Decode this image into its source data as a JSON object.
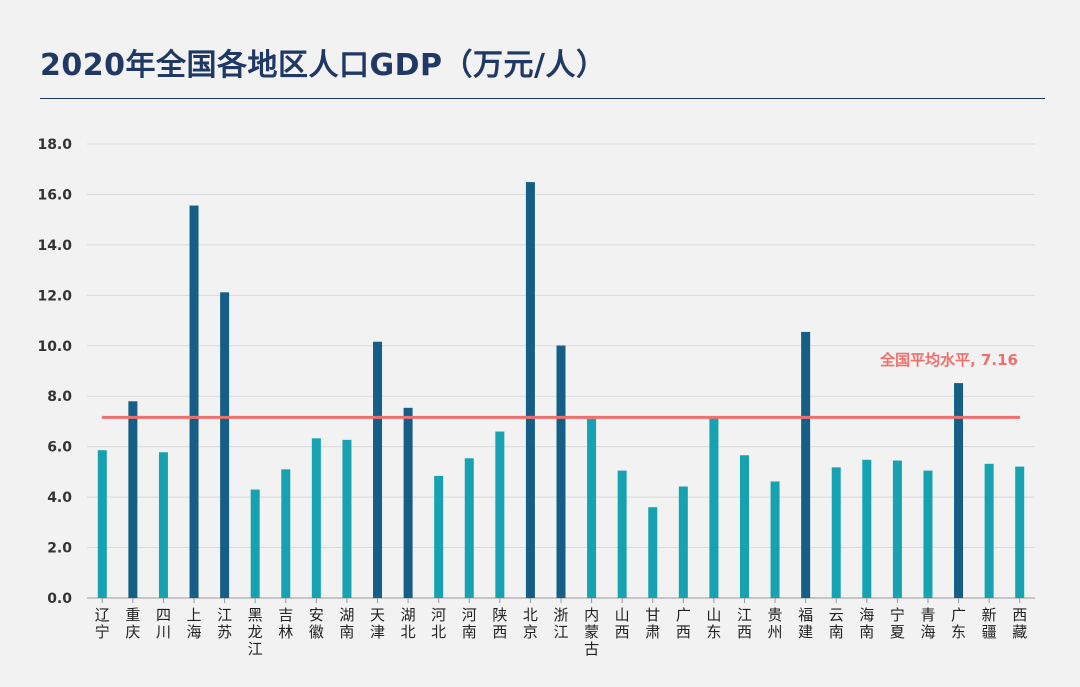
{
  "header": {
    "title": "2020年全国各地区人口GDP（万元/人）"
  },
  "colors": {
    "below_avg": "#17a2b1",
    "above_avg": "#155f86",
    "avg_line": "#ef6f6c",
    "title": "#1f3864",
    "grid": "#d9d9d9",
    "axis": "#999999"
  },
  "chart_data": {
    "type": "bar",
    "ylim": [
      0,
      18
    ],
    "ytick_step": 2,
    "ytick_labels": [
      "0.0",
      "2.0",
      "4.0",
      "6.0",
      "8.0",
      "10.0",
      "12.0",
      "14.0",
      "16.0",
      "18.0"
    ],
    "grid": true,
    "categories": [
      "辽宁",
      "重庆",
      "四川",
      "上海",
      "江苏",
      "黑龙江",
      "吉林",
      "安徽",
      "湖南",
      "天津",
      "湖北",
      "河北",
      "河南",
      "陕西",
      "北京",
      "浙江",
      "内蒙古",
      "山西",
      "甘肃",
      "广西",
      "山东",
      "江西",
      "贵州",
      "福建",
      "云南",
      "海南",
      "宁夏",
      "青海",
      "广东",
      "新疆",
      "西藏"
    ],
    "values": [
      5.86,
      7.8,
      5.78,
      15.56,
      12.12,
      4.3,
      5.1,
      6.33,
      6.27,
      10.16,
      7.54,
      4.84,
      5.54,
      6.6,
      16.49,
      10.01,
      7.1,
      5.05,
      3.6,
      4.42,
      7.15,
      5.66,
      4.62,
      10.55,
      5.18,
      5.48,
      5.45,
      5.05,
      8.52,
      5.32,
      5.21
    ],
    "reference_line": {
      "label": "全国平均水平, 7.16",
      "value": 7.16
    }
  }
}
